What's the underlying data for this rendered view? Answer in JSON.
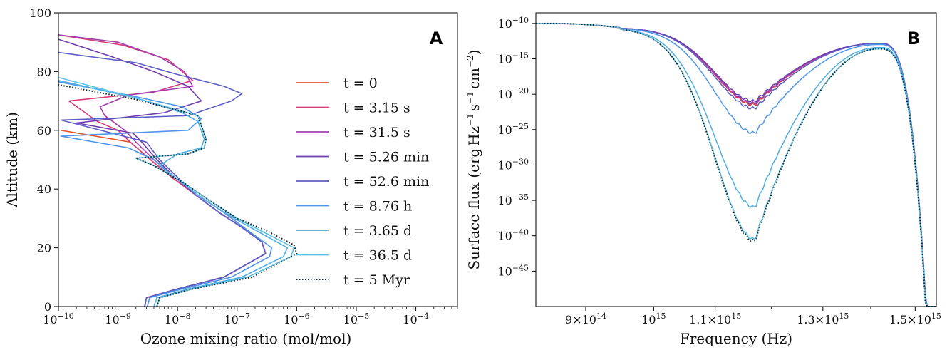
{
  "colors": {
    "t0": "#e4572e",
    "t1": "#d63b7a",
    "t2": "#a23fb0",
    "t3": "#6f3dab",
    "t4": "#5b5ec6",
    "t5": "#4f95e8",
    "t6": "#4eaee3",
    "t7": "#5cc1e8",
    "t8": "#0f2a2a"
  },
  "chart_data": [
    {
      "panel": "A",
      "type": "line",
      "xscale": "log",
      "xlabel": "Ozone mixing ratio (mol/mol)",
      "ylabel": "Altitude (km)",
      "xlim": [
        1e-10,
        0.0005
      ],
      "ylim": [
        0,
        100
      ],
      "x_ticks": [
        "10^-10",
        "10^-9",
        "10^-8",
        "10^-7",
        "10^-6",
        "10^-5",
        "10^-4"
      ],
      "y_ticks": [
        "0",
        "20",
        "40",
        "60",
        "80",
        "100"
      ],
      "legend_position": "center-right",
      "series": [
        {
          "name": "t = 0",
          "color_key": "t0",
          "style": "solid",
          "points": [
            [
              2.8e-09,
              0
            ],
            [
              3e-09,
              3
            ],
            [
              1e-08,
              6
            ],
            [
              6e-08,
              10
            ],
            [
              3e-07,
              18
            ],
            [
              2.6e-07,
              22
            ],
            [
              1.2e-07,
              27
            ],
            [
              5e-08,
              32
            ],
            [
              2e-08,
              38
            ],
            [
              8e-09,
              44
            ],
            [
              3.5e-09,
              50
            ],
            [
              1.6e-09,
              56
            ],
            [
              1.1e-10,
              60
            ]
          ]
        },
        {
          "name": "t = 3.15 s",
          "color_key": "t1",
          "style": "solid",
          "points": [
            [
              2.8e-09,
              0
            ],
            [
              3e-09,
              3
            ],
            [
              1e-08,
              6
            ],
            [
              6e-08,
              10
            ],
            [
              3e-07,
              18
            ],
            [
              2.6e-07,
              22
            ],
            [
              1.2e-07,
              27
            ],
            [
              5e-08,
              32
            ],
            [
              2e-08,
              38
            ],
            [
              8e-09,
              44
            ],
            [
              3.5e-09,
              50
            ],
            [
              1.6e-09,
              56
            ],
            [
              1e-09,
              60
            ],
            [
              4.5e-10,
              63
            ],
            [
              1.5e-10,
              70
            ],
            [
              4e-09,
              73
            ],
            [
              1.8e-08,
              77
            ],
            [
              7e-09,
              84
            ],
            [
              1.2e-09,
              89
            ],
            [
              1e-10,
              92.5
            ]
          ]
        },
        {
          "name": "t = 31.5 s",
          "color_key": "t2",
          "style": "solid",
          "points": [
            [
              2.8e-09,
              0
            ],
            [
              3e-09,
              3
            ],
            [
              1e-08,
              6
            ],
            [
              6e-08,
              10
            ],
            [
              3e-07,
              18
            ],
            [
              2.6e-07,
              22
            ],
            [
              1.2e-07,
              27
            ],
            [
              5e-08,
              32
            ],
            [
              2e-08,
              38
            ],
            [
              9e-09,
              44
            ],
            [
              4e-09,
              50
            ],
            [
              2e-09,
              56
            ],
            [
              1.3e-09,
              60
            ],
            [
              6e-10,
              65
            ],
            [
              5e-10,
              68
            ],
            [
              1.5e-09,
              72
            ],
            [
              1.8e-08,
              75
            ],
            [
              1.3e-08,
              80
            ],
            [
              5e-09,
              85
            ],
            [
              1e-09,
              90
            ],
            [
              1e-10,
              92.5
            ]
          ]
        },
        {
          "name": "t = 5.26 min",
          "color_key": "t3",
          "style": "solid",
          "points": [
            [
              2.8e-09,
              0
            ],
            [
              3e-09,
              3
            ],
            [
              1e-08,
              6
            ],
            [
              6e-08,
              10
            ],
            [
              3e-07,
              18
            ],
            [
              2.6e-07,
              22
            ],
            [
              1.2e-07,
              27
            ],
            [
              5e-08,
              32
            ],
            [
              2e-08,
              38
            ],
            [
              9e-09,
              44
            ],
            [
              4.5e-09,
              50
            ],
            [
              2.5e-09,
              56
            ],
            [
              1.8e-09,
              59
            ],
            [
              2e-10,
              62.5
            ],
            [
              6e-09,
              66
            ],
            [
              2.5e-08,
              70
            ],
            [
              1.5e-08,
              75
            ],
            [
              4e-09,
              80
            ],
            [
              8e-10,
              85
            ],
            [
              1e-10,
              91
            ]
          ]
        },
        {
          "name": "t = 52.6 min",
          "color_key": "t4",
          "style": "solid",
          "points": [
            [
              2.8e-09,
              0
            ],
            [
              3e-09,
              3
            ],
            [
              1e-08,
              6
            ],
            [
              6e-08,
              10
            ],
            [
              3e-07,
              18
            ],
            [
              2.6e-07,
              22
            ],
            [
              1.2e-07,
              27
            ],
            [
              5e-08,
              32
            ],
            [
              2e-08,
              38
            ],
            [
              1e-08,
              44
            ],
            [
              5e-09,
              50
            ],
            [
              3e-09,
              56
            ],
            [
              1.1e-10,
              63.5
            ],
            [
              1.5e-08,
              65
            ],
            [
              8e-08,
              70
            ],
            [
              1.2e-07,
              72.5
            ],
            [
              6e-08,
              75
            ],
            [
              1e-08,
              79
            ],
            [
              2e-09,
              83
            ],
            [
              1e-10,
              86.5
            ]
          ]
        },
        {
          "name": "t = 8.76 h",
          "color_key": "t5",
          "style": "solid",
          "points": [
            [
              3.1e-09,
              0
            ],
            [
              3.4e-09,
              3
            ],
            [
              1.2e-08,
              6
            ],
            [
              8e-08,
              10
            ],
            [
              3.5e-07,
              17
            ],
            [
              3.8e-07,
              20
            ],
            [
              1.5e-07,
              26
            ],
            [
              6e-08,
              32
            ],
            [
              2.2e-08,
              38
            ],
            [
              9e-09,
              44
            ],
            [
              4e-09,
              50
            ],
            [
              1.5e-09,
              54
            ],
            [
              1.1e-10,
              58
            ],
            [
              1.5e-08,
              60
            ],
            [
              2.5e-08,
              64
            ],
            [
              1.2e-08,
              68
            ],
            [
              1.5e-09,
              72
            ],
            [
              1e-10,
              76.5
            ]
          ]
        },
        {
          "name": "t = 3.65 d",
          "color_key": "t6",
          "style": "solid",
          "points": [
            [
              4e-09,
              0
            ],
            [
              4.5e-09,
              3
            ],
            [
              1.5e-08,
              6
            ],
            [
              1.2e-07,
              10
            ],
            [
              6e-07,
              17
            ],
            [
              7e-07,
              20
            ],
            [
              2.5e-07,
              25
            ],
            [
              9e-08,
              30
            ],
            [
              3e-08,
              36
            ],
            [
              1.2e-08,
              42
            ],
            [
              5e-09,
              48
            ],
            [
              1e-08,
              52
            ],
            [
              2.5e-08,
              54
            ],
            [
              2.8e-08,
              57
            ],
            [
              2.2e-08,
              63
            ],
            [
              1.2e-08,
              66
            ],
            [
              2e-09,
              71
            ],
            [
              1e-10,
              77
            ]
          ]
        },
        {
          "name": "t = 36.5 d",
          "color_key": "t7",
          "style": "solid",
          "points": [
            [
              4.5e-09,
              0
            ],
            [
              5e-09,
              3
            ],
            [
              1.8e-08,
              6
            ],
            [
              1.5e-07,
              10
            ],
            [
              8e-07,
              17
            ],
            [
              9e-07,
              20
            ],
            [
              3e-07,
              25
            ],
            [
              1e-07,
              30
            ],
            [
              3.5e-08,
              36
            ],
            [
              1.3e-08,
              42
            ],
            [
              4e-09,
              48
            ],
            [
              2e-09,
              50.5
            ],
            [
              1.5e-08,
              52
            ],
            [
              2.8e-08,
              54
            ],
            [
              3e-08,
              57
            ],
            [
              2.2e-08,
              65
            ],
            [
              2e-09,
              71
            ],
            [
              1e-10,
              78
            ]
          ]
        },
        {
          "name": "t = 5 Myr",
          "color_key": "t8",
          "style": "dotted",
          "points": [
            [
              4.5e-09,
              0
            ],
            [
              5e-09,
              3
            ],
            [
              1.8e-08,
              6
            ],
            [
              1.8e-07,
              10
            ],
            [
              1e-06,
              18
            ],
            [
              9e-07,
              21
            ],
            [
              3e-07,
              26
            ],
            [
              1e-07,
              30
            ],
            [
              3.5e-08,
              36
            ],
            [
              1.3e-08,
              42
            ],
            [
              4e-09,
              48
            ],
            [
              2e-09,
              50.5
            ],
            [
              1.5e-08,
              52
            ],
            [
              2.8e-08,
              54
            ],
            [
              3e-08,
              57
            ],
            [
              2.2e-08,
              65
            ],
            [
              2e-09,
              70.5
            ],
            [
              1e-10,
              75.5
            ]
          ]
        }
      ]
    },
    {
      "panel": "B",
      "type": "line",
      "xscale": "log",
      "yscale": "log",
      "xlabel": "Frequency (Hz)",
      "ylabel_main": "Surface flux (",
      "ylabel_unit_erg": "erg",
      "ylabel_unit_hz": "Hz",
      "ylabel_unit_s": "s",
      "ylabel_unit_cm": "cm",
      "ylabel_close": ")",
      "xlim": [
        833000000000000.0,
        1550000000000000.0
      ],
      "ylim_exponent": [
        -50,
        -8.5
      ],
      "x_ticks": [
        {
          "value": 900000000000000.0,
          "mant": "9×10",
          "exp": "14"
        },
        {
          "value": 1000000000000000.0,
          "mant": "10",
          "exp": "15"
        },
        {
          "value": 1100000000000000.0,
          "mant": "1.1×10",
          "exp": "15"
        },
        {
          "value": 1300000000000000.0,
          "mant": "1.3×10",
          "exp": "15"
        },
        {
          "value": 1500000000000000.0,
          "mant": "1.5×10",
          "exp": "15"
        }
      ],
      "y_ticks": [
        {
          "value": -10,
          "label": "10",
          "exp": "−10"
        },
        {
          "value": -15,
          "label": "10",
          "exp": "−15"
        },
        {
          "value": -20,
          "label": "10",
          "exp": "−20"
        },
        {
          "value": -25,
          "label": "10",
          "exp": "−25"
        },
        {
          "value": -30,
          "label": "10",
          "exp": "−30"
        },
        {
          "value": -35,
          "label": "10",
          "exp": "−35"
        },
        {
          "value": -40,
          "label": "10",
          "exp": "−40"
        },
        {
          "value": -45,
          "label": "10",
          "exp": "−45"
        }
      ],
      "series": [
        {
          "name": "t = 0",
          "color_key": "t0",
          "style": "solid",
          "minimum_log": -21.5
        },
        {
          "name": "t = 3.15 s",
          "color_key": "t1",
          "style": "solid",
          "minimum_log": -21.4
        },
        {
          "name": "t = 31.5 s",
          "color_key": "t2",
          "style": "solid",
          "minimum_log": -21.3
        },
        {
          "name": "t = 5.26 min",
          "color_key": "t3",
          "style": "solid",
          "minimum_log": -21.0
        },
        {
          "name": "t = 52.6 min",
          "color_key": "t4",
          "style": "solid",
          "minimum_log": -22.0
        },
        {
          "name": "t = 8.76 h",
          "color_key": "t5",
          "style": "solid",
          "minimum_log": -25.5
        },
        {
          "name": "t = 3.65 d",
          "color_key": "t6",
          "style": "solid",
          "minimum_log": -36.0
        },
        {
          "name": "t = 36.5 d",
          "color_key": "t7",
          "style": "solid",
          "minimum_log": -40.5
        },
        {
          "name": "t = 5 Myr",
          "color_key": "t8",
          "style": "dotted",
          "minimum_log": -40.8
        }
      ]
    }
  ]
}
